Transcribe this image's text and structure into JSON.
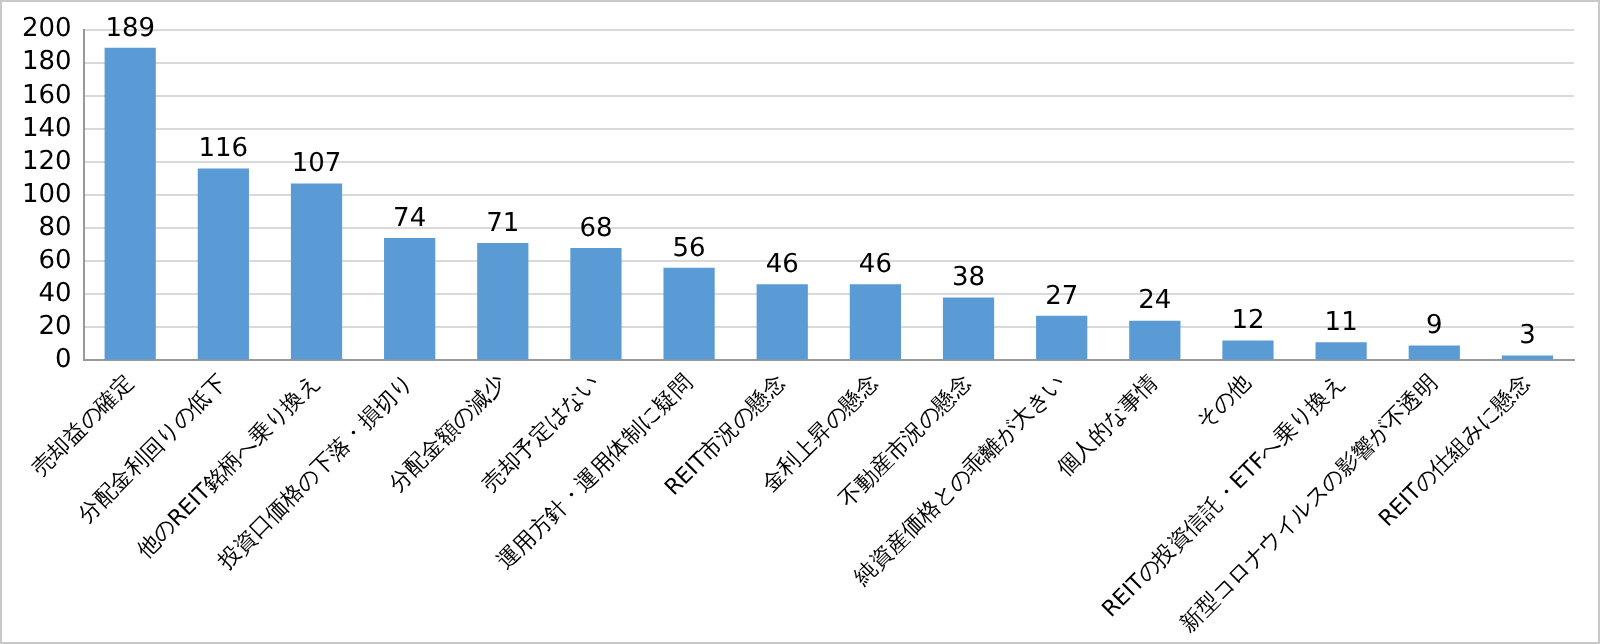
{
  "chart_data": {
    "type": "bar",
    "categories": [
      "売却益の確定",
      "分配金利回りの低下",
      "他のREIT銘柄へ乗り換え",
      "投資口価格の下落・損切り",
      "分配金額の減少",
      "売却予定はない",
      "運用方針・運用体制に疑問",
      "REIT市況の懸念",
      "金利上昇の懸念",
      "不動産市況の懸念",
      "純資産価格との乖離が大きい",
      "個人的な事情",
      "その他",
      "REITの投資信託・ETFへ乗り換え",
      "新型コロナウイルスの影響が不透明",
      "REITの仕組みに懸念"
    ],
    "values": [
      189,
      116,
      107,
      74,
      71,
      68,
      56,
      46,
      46,
      38,
      27,
      24,
      12,
      11,
      9,
      3
    ],
    "color": "#5b9bd5",
    "ylim": [
      0,
      200
    ],
    "yticks": [
      0,
      20,
      40,
      60,
      80,
      100,
      120,
      140,
      160,
      180,
      200
    ],
    "grid": "y",
    "legend": false,
    "data_labels": true
  }
}
